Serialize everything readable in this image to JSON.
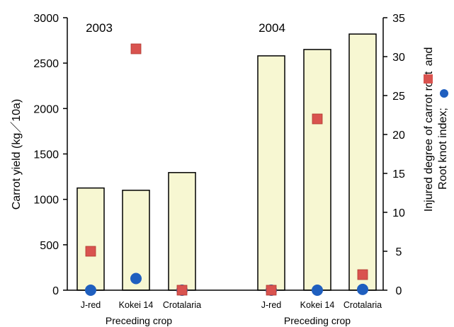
{
  "chart_data": {
    "type": "bar",
    "panels": [
      {
        "year_label": "2003",
        "categories": [
          "J-red",
          "Kokei 14",
          "Crotalaria"
        ],
        "xlabel": "Preceding crop"
      },
      {
        "year_label": "2004",
        "categories": [
          "J-red",
          "Kokei 14",
          "Crotalaria"
        ],
        "xlabel": "Preceding crop"
      }
    ],
    "series": [
      {
        "name": "Carrot yield",
        "axis": "left",
        "mark": "bar",
        "color": "#f7f7d2",
        "values_2003": [
          1125,
          1100,
          1295
        ],
        "values_2004": [
          2580,
          2650,
          2820
        ]
      },
      {
        "name": "Injured degree of carrot root",
        "axis": "right",
        "mark": "square",
        "color": "#d9534f",
        "values_2003": [
          5,
          31,
          0
        ],
        "values_2004": [
          0,
          22,
          2
        ]
      },
      {
        "name": "Root knot index",
        "axis": "right",
        "mark": "circle",
        "color": "#1f5fbf",
        "values_2003": [
          0,
          1.5,
          0
        ],
        "values_2004": [
          0,
          0,
          0.1
        ]
      }
    ],
    "ylabel": "Carrot yield (kg／10a)",
    "ylabel_right_line1": "Injured degree of carrot root",
    "ylabel_right_and": "and",
    "ylabel_right_line2": "Root knot index;",
    "ylim": [
      0,
      3000
    ],
    "yticks": [
      "0",
      "500",
      "1000",
      "1500",
      "2000",
      "2500",
      "3000"
    ],
    "ylim_right": [
      0,
      35
    ],
    "yticks_right": [
      "0",
      "5",
      "10",
      "15",
      "20",
      "25",
      "30",
      "35"
    ],
    "grid": false,
    "legend": "none"
  }
}
